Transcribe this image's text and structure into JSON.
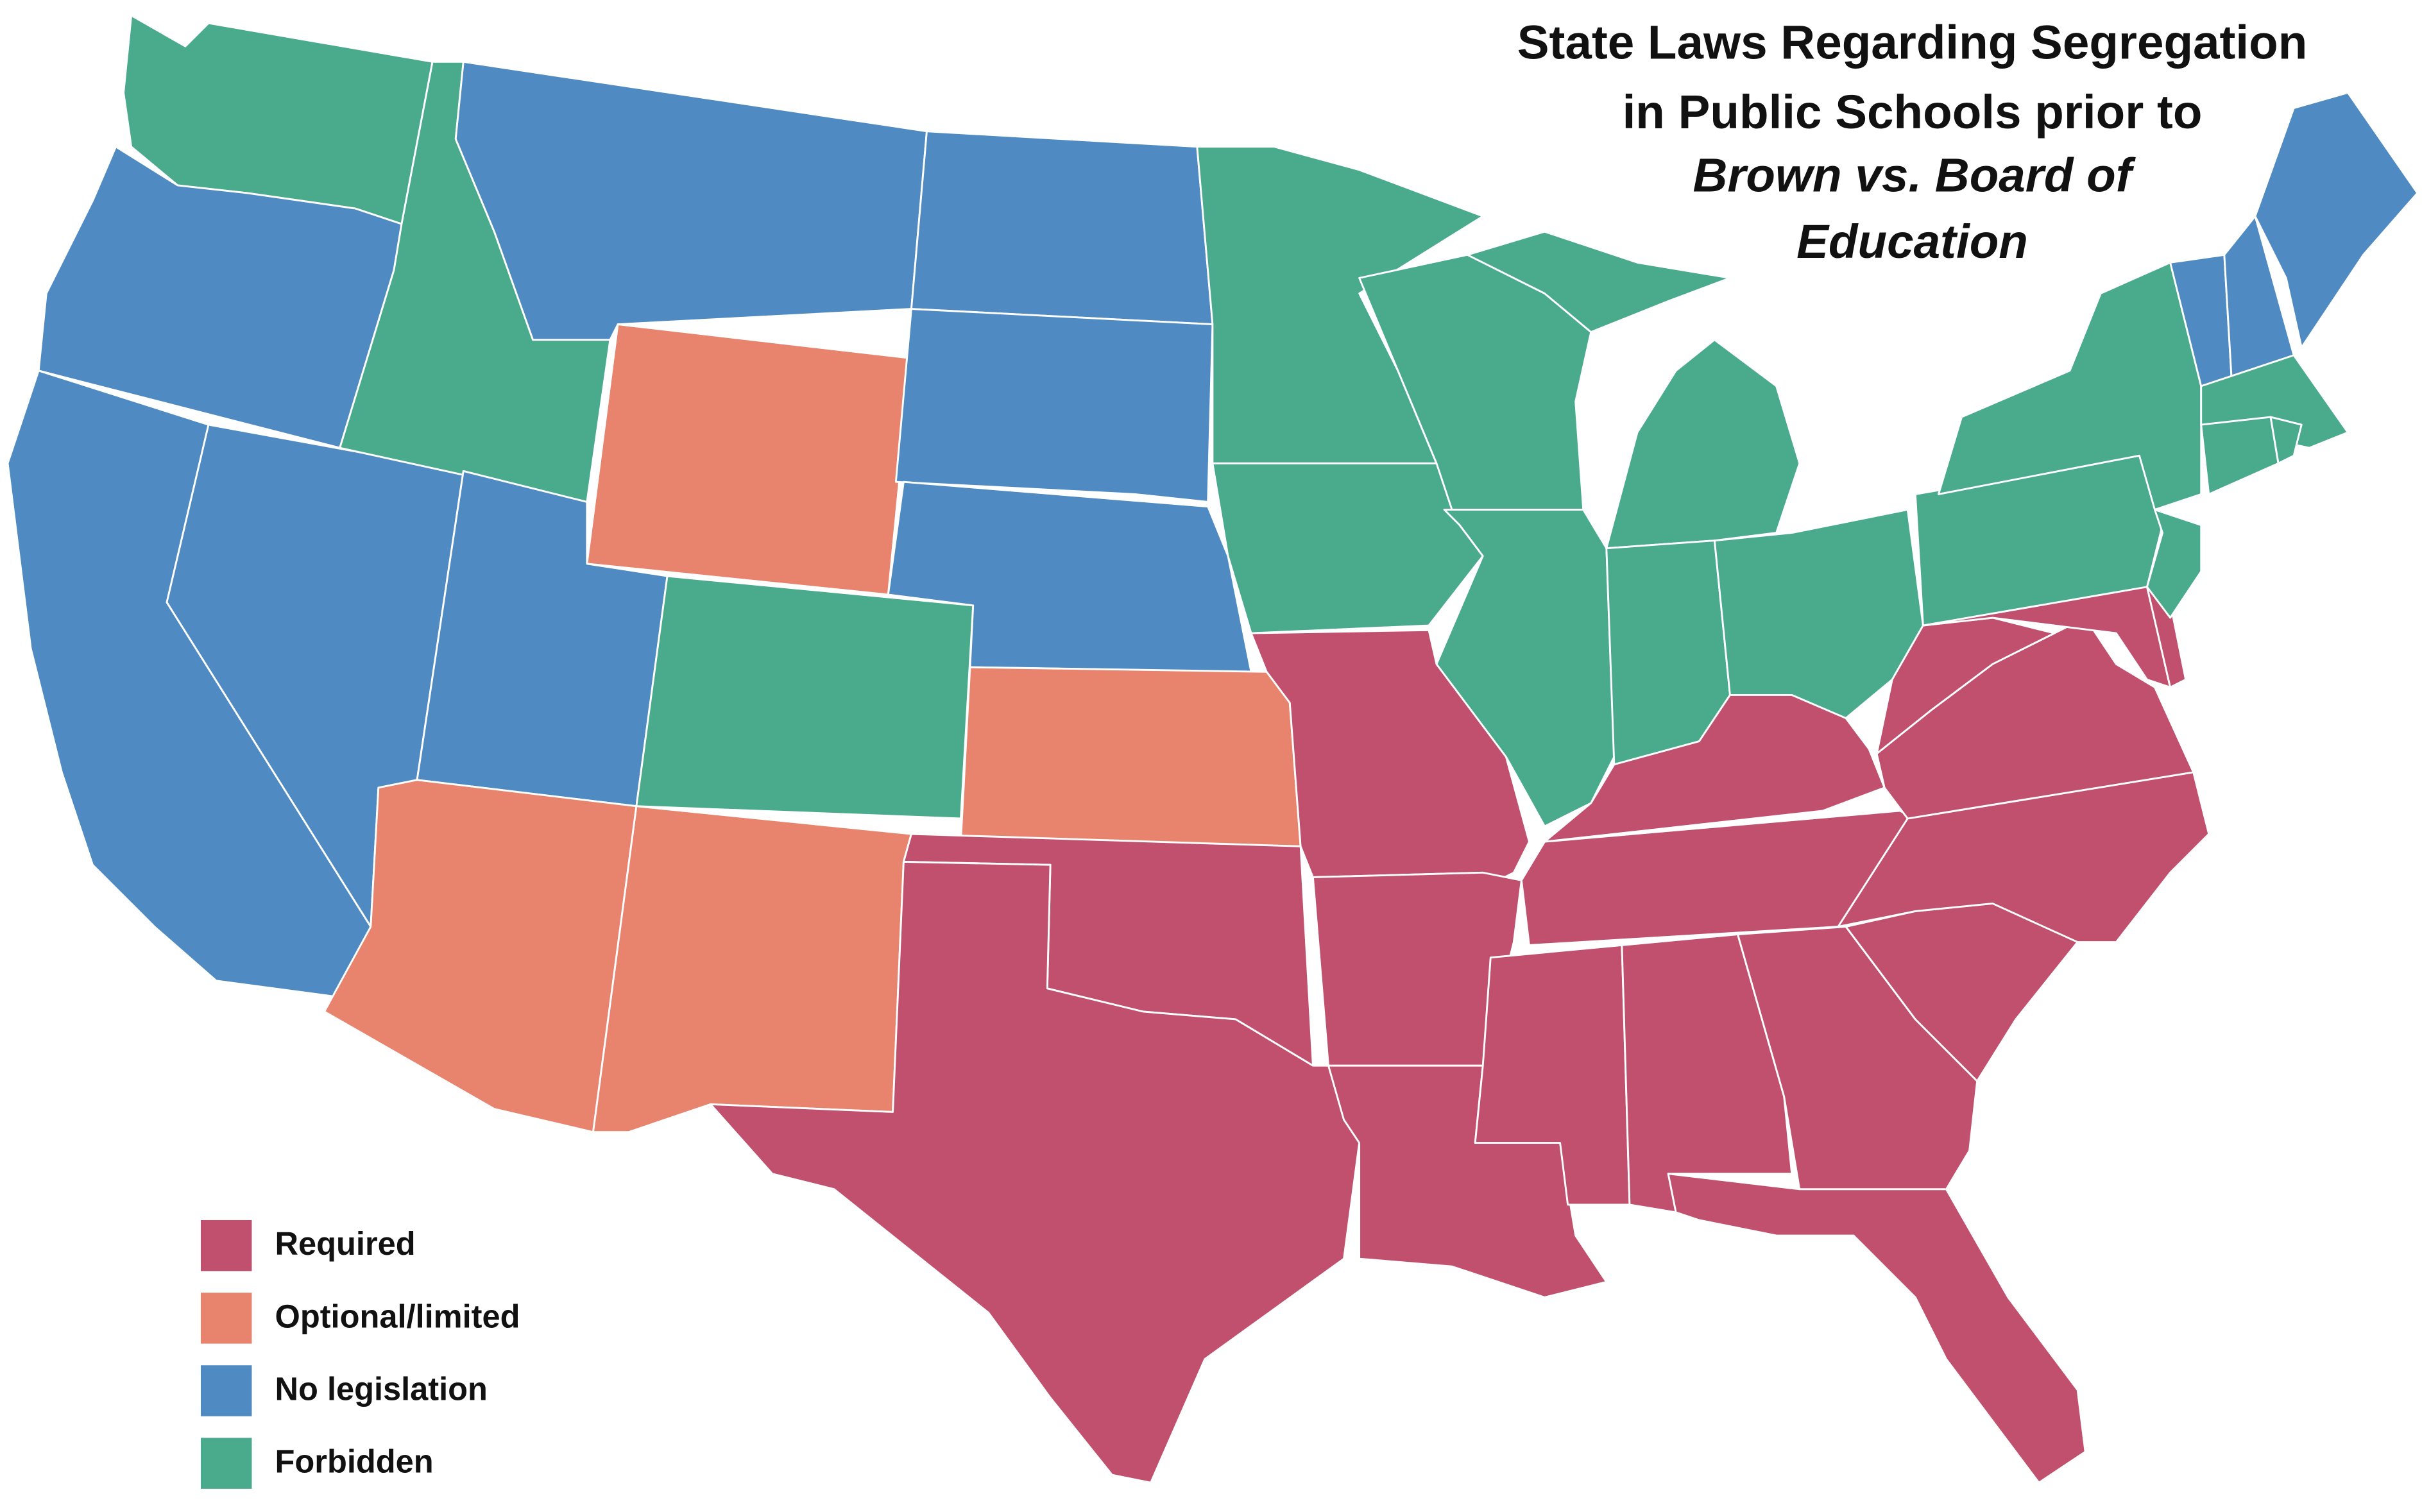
{
  "title": {
    "lines": [
      "State Laws Regarding Segregation",
      "in Public Schools prior to",
      "Brown vs. Board of",
      "Education"
    ]
  },
  "legend": {
    "items": [
      {
        "label": "Required",
        "color": "#c0506e"
      },
      {
        "label": "Optional/limited",
        "color": "#e8846e"
      },
      {
        "label": "No legislation",
        "color": "#4f8bc2"
      },
      {
        "label": "Forbidden",
        "color": "#4aaa8c"
      }
    ]
  }
}
